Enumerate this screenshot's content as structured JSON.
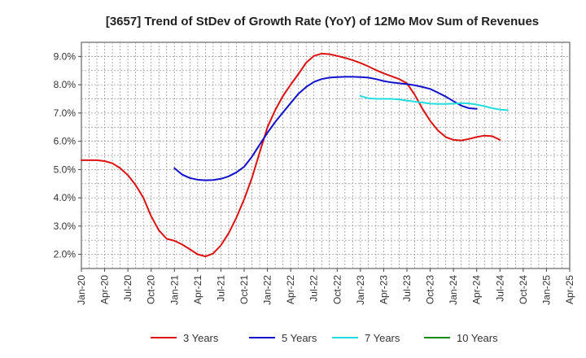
{
  "chart_data": {
    "type": "line",
    "title": "[3657]  Trend of StDev of Growth Rate (YoY) of 12Mo Mov Sum of Revenues",
    "xlabel": "",
    "ylabel": "",
    "x_tick_labels": [
      "Jan-20",
      "Apr-20",
      "Jul-20",
      "Oct-20",
      "Jan-21",
      "Apr-21",
      "Jul-21",
      "Oct-21",
      "Jan-22",
      "Apr-22",
      "Jul-22",
      "Oct-22",
      "Jan-23",
      "Apr-23",
      "Jul-23",
      "Oct-23",
      "Jan-24",
      "Apr-24",
      "Jul-24",
      "Oct-24",
      "Jan-25",
      "Apr-25"
    ],
    "y_tick_labels": [
      "2.0%",
      "3.0%",
      "4.0%",
      "5.0%",
      "6.0%",
      "7.0%",
      "8.0%",
      "9.0%"
    ],
    "y_ticks": [
      2,
      3,
      4,
      5,
      6,
      7,
      8,
      9
    ],
    "ylim": [
      1.5,
      9.5
    ],
    "x_range_months": [
      0,
      63
    ],
    "grid": true,
    "legend_position": "bottom",
    "series": [
      {
        "name": "3 Years",
        "color": "#dd1111",
        "start_month": 0,
        "values": [
          5.33,
          5.33,
          5.33,
          5.3,
          5.22,
          5.05,
          4.8,
          4.45,
          4.0,
          3.35,
          2.85,
          2.55,
          2.48,
          2.35,
          2.18,
          2.0,
          1.93,
          2.03,
          2.32,
          2.75,
          3.3,
          3.95,
          4.7,
          5.6,
          6.5,
          7.1,
          7.6,
          8.0,
          8.38,
          8.78,
          9.02,
          9.1,
          9.08,
          9.02,
          8.95,
          8.87,
          8.77,
          8.65,
          8.52,
          8.4,
          8.3,
          8.2,
          8.05,
          7.65,
          7.15,
          6.72,
          6.38,
          6.15,
          6.05,
          6.03,
          6.08,
          6.15,
          6.2,
          6.18,
          6.05
        ]
      },
      {
        "name": "5 Years",
        "color": "#1111cc",
        "start_month": 12,
        "values": [
          5.05,
          4.82,
          4.7,
          4.64,
          4.62,
          4.63,
          4.67,
          4.76,
          4.9,
          5.1,
          5.45,
          5.88,
          6.3,
          6.68,
          7.02,
          7.35,
          7.68,
          7.92,
          8.1,
          8.2,
          8.25,
          8.27,
          8.28,
          8.28,
          8.27,
          8.25,
          8.2,
          8.13,
          8.08,
          8.05,
          8.02,
          7.98,
          7.92,
          7.85,
          7.72,
          7.58,
          7.42,
          7.26,
          7.17,
          7.15
        ]
      },
      {
        "name": "7 Years",
        "color": "#22dddd",
        "start_month": 36,
        "values": [
          7.6,
          7.52,
          7.5,
          7.5,
          7.5,
          7.48,
          7.44,
          7.4,
          7.37,
          7.33,
          7.32,
          7.32,
          7.33,
          7.35,
          7.34,
          7.3,
          7.24,
          7.17,
          7.12,
          7.1
        ]
      },
      {
        "name": "10 Years",
        "color": "#118811",
        "start_month": 0,
        "values": []
      }
    ]
  }
}
